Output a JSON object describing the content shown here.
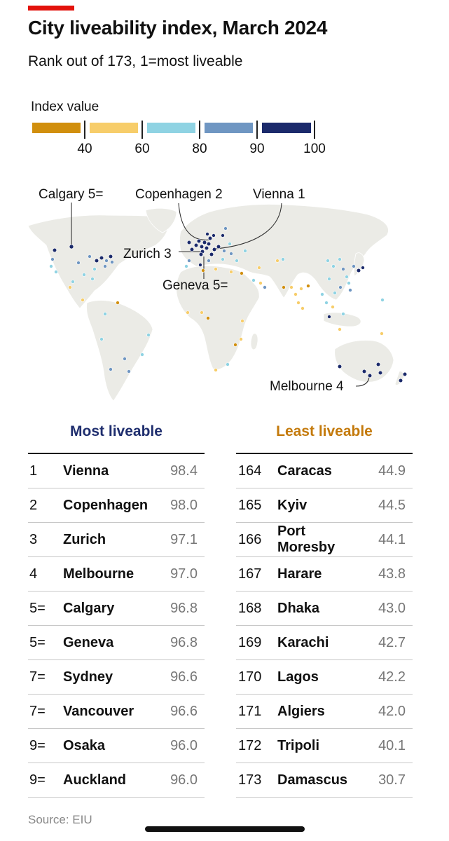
{
  "title": "City liveability index, March 2024",
  "subtitle": "Rank out of 173, 1=most liveable",
  "source": "Source: EIU",
  "legend": {
    "title": "Index value",
    "ticks": [
      "40",
      "60",
      "80",
      "90",
      "100"
    ],
    "bins": [
      {
        "color": "#d18f0d"
      },
      {
        "color": "#f7cd6a"
      },
      {
        "color": "#8fd3e3"
      },
      {
        "color": "#6f96c2"
      },
      {
        "color": "#1b2a6b"
      }
    ]
  },
  "map_labels": {
    "calgary": "Calgary 5=",
    "copenhagen": "Copenhagen 2",
    "vienna": "Vienna 1",
    "zurich": "Zurich 3",
    "geneva": "Geneva 5=",
    "melbourne": "Melbourne 4"
  },
  "chart_data": {
    "type": "table",
    "most_liveable": {
      "heading": "Most liveable",
      "rows": [
        {
          "rank": "1",
          "city": "Vienna",
          "value": "98.4"
        },
        {
          "rank": "2",
          "city": "Copenhagen",
          "value": "98.0"
        },
        {
          "rank": "3",
          "city": "Zurich",
          "value": "97.1"
        },
        {
          "rank": "4",
          "city": "Melbourne",
          "value": "97.0"
        },
        {
          "rank": "5=",
          "city": "Calgary",
          "value": "96.8"
        },
        {
          "rank": "5=",
          "city": "Geneva",
          "value": "96.8"
        },
        {
          "rank": "7=",
          "city": "Sydney",
          "value": "96.6"
        },
        {
          "rank": "7=",
          "city": "Vancouver",
          "value": "96.6"
        },
        {
          "rank": "9=",
          "city": "Osaka",
          "value": "96.0"
        },
        {
          "rank": "9=",
          "city": "Auckland",
          "value": "96.0"
        }
      ]
    },
    "least_liveable": {
      "heading": "Least liveable",
      "rows": [
        {
          "rank": "164",
          "city": "Caracas",
          "value": "44.9"
        },
        {
          "rank": "165",
          "city": "Kyiv",
          "value": "44.5"
        },
        {
          "rank": "166",
          "city": "Port Moresby",
          "value": "44.1"
        },
        {
          "rank": "167",
          "city": "Harare",
          "value": "43.8"
        },
        {
          "rank": "168",
          "city": "Dhaka",
          "value": "43.0"
        },
        {
          "rank": "169",
          "city": "Karachi",
          "value": "42.7"
        },
        {
          "rank": "170",
          "city": "Lagos",
          "value": "42.2"
        },
        {
          "rank": "171",
          "city": "Algiers",
          "value": "42.0"
        },
        {
          "rank": "172",
          "city": "Tripoli",
          "value": "40.1"
        },
        {
          "rank": "173",
          "city": "Damascus",
          "value": "30.7"
        }
      ]
    }
  }
}
